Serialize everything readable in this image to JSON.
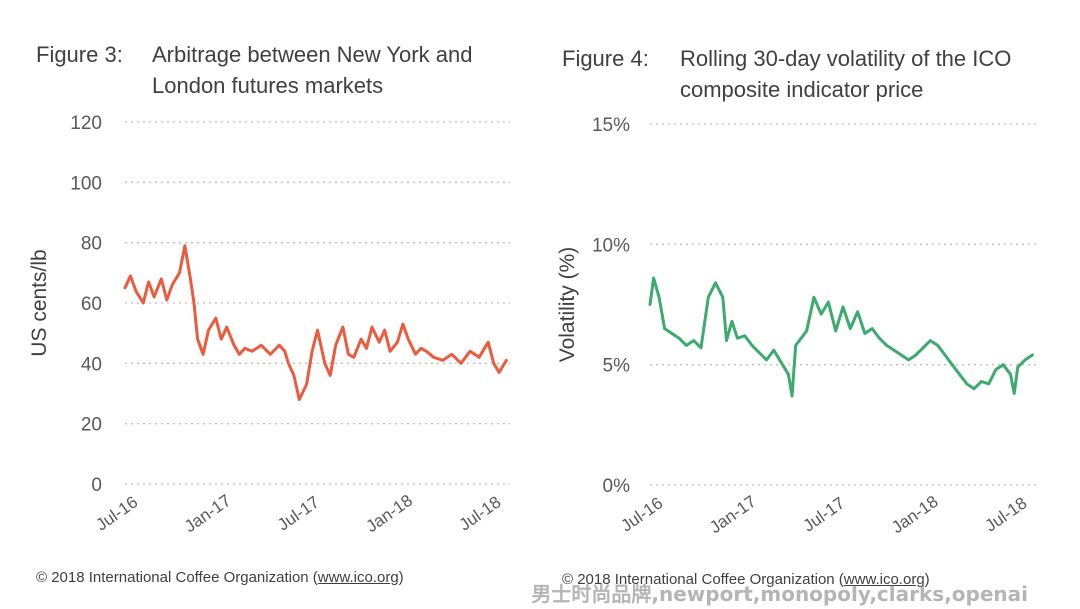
{
  "chart_data": [
    {
      "type": "line",
      "figure_number": "Figure 3:",
      "title_lines": [
        "Arbitrage between New York and",
        "London futures markets"
      ],
      "xlabel": "",
      "ylabel": "US cents/lb",
      "ylim": [
        0,
        120
      ],
      "yticks": [
        0,
        20,
        40,
        60,
        80,
        100,
        120
      ],
      "ytick_labels": [
        "0",
        "20",
        "40",
        "60",
        "80",
        "100",
        "120"
      ],
      "xlim": [
        2016.5,
        2018.62
      ],
      "xtick_labels": [
        "Jul-16",
        "Jan-17",
        "Jul-17",
        "Jan-18",
        "Jul-18"
      ],
      "xtick_values": [
        2016.5,
        2017.0,
        2017.5,
        2018.0,
        2018.5
      ],
      "grid": true,
      "color": "#ED5B3E",
      "series": [
        {
          "x": [
            2016.5,
            2016.53,
            2016.56,
            2016.6,
            2016.63,
            2016.66,
            2016.7,
            2016.73,
            2016.76,
            2016.8,
            2016.83,
            2016.86,
            2016.88,
            2016.9,
            2016.93,
            2016.96,
            2017.0,
            2017.03,
            2017.06,
            2017.1,
            2017.13,
            2017.16,
            2017.2,
            2017.25,
            2017.3,
            2017.35,
            2017.38,
            2017.4,
            2017.43,
            2017.46,
            2017.5,
            2017.53,
            2017.56,
            2017.6,
            2017.63,
            2017.66,
            2017.7,
            2017.73,
            2017.76,
            2017.8,
            2017.83,
            2017.86,
            2017.9,
            2017.93,
            2017.96,
            2018.0,
            2018.03,
            2018.06,
            2018.1,
            2018.13,
            2018.16,
            2018.2,
            2018.25,
            2018.3,
            2018.35,
            2018.4,
            2018.45,
            2018.5,
            2018.53,
            2018.56,
            2018.6
          ],
          "y": [
            65,
            69,
            64,
            60,
            67,
            62,
            68,
            61,
            66,
            70,
            79,
            68,
            60,
            48,
            43,
            51,
            55,
            48,
            52,
            46,
            43,
            45,
            44,
            46,
            43,
            46,
            44,
            40,
            36,
            28,
            33,
            44,
            51,
            40,
            36,
            46,
            52,
            43,
            42,
            48,
            45,
            52,
            47,
            51,
            44,
            47,
            53,
            48,
            43,
            45,
            44,
            42,
            41,
            43,
            40,
            44,
            42,
            47,
            40,
            37,
            41
          ]
        }
      ]
    },
    {
      "type": "line",
      "figure_number": "Figure 4:",
      "title_lines": [
        "Rolling 30-day volatility of the ICO",
        "composite indicator price"
      ],
      "xlabel": "",
      "ylabel": "Volatility (%)",
      "ylim": [
        0,
        15
      ],
      "yticks": [
        0,
        5,
        10,
        15
      ],
      "ytick_labels": [
        "0%",
        "5%",
        "10%",
        "15%"
      ],
      "xlim": [
        2016.5,
        2018.62
      ],
      "xtick_labels": [
        "Jul-16",
        "Jan-17",
        "Jul-17",
        "Jan-18",
        "Jul-18"
      ],
      "xtick_values": [
        2016.5,
        2017.0,
        2017.5,
        2018.0,
        2018.5
      ],
      "grid": true,
      "color": "#3DAA6E",
      "series": [
        {
          "x": [
            2016.5,
            2016.52,
            2016.55,
            2016.58,
            2016.62,
            2016.66,
            2016.7,
            2016.74,
            2016.78,
            2016.82,
            2016.86,
            2016.9,
            2016.92,
            2016.95,
            2016.98,
            2017.02,
            2017.06,
            2017.1,
            2017.14,
            2017.18,
            2017.22,
            2017.26,
            2017.28,
            2017.3,
            2017.32,
            2017.36,
            2017.4,
            2017.44,
            2017.48,
            2017.52,
            2017.56,
            2017.6,
            2017.64,
            2017.68,
            2017.72,
            2017.76,
            2017.8,
            2017.84,
            2017.88,
            2017.92,
            2017.96,
            2018.0,
            2018.04,
            2018.08,
            2018.12,
            2018.16,
            2018.2,
            2018.24,
            2018.28,
            2018.32,
            2018.36,
            2018.4,
            2018.44,
            2018.48,
            2018.5,
            2018.52,
            2018.56,
            2018.6
          ],
          "y": [
            7.5,
            8.6,
            7.8,
            6.5,
            6.3,
            6.1,
            5.8,
            6.0,
            5.7,
            7.8,
            8.4,
            7.8,
            6.0,
            6.8,
            6.1,
            6.2,
            5.8,
            5.5,
            5.2,
            5.6,
            5.1,
            4.6,
            3.7,
            5.8,
            6.0,
            6.4,
            7.8,
            7.1,
            7.6,
            6.4,
            7.4,
            6.5,
            7.2,
            6.3,
            6.5,
            6.1,
            5.8,
            5.6,
            5.4,
            5.2,
            5.4,
            5.7,
            6.0,
            5.8,
            5.4,
            5.0,
            4.6,
            4.2,
            4.0,
            4.3,
            4.2,
            4.8,
            5.0,
            4.6,
            3.8,
            4.9,
            5.2,
            5.4
          ]
        }
      ]
    }
  ],
  "credits": [
    {
      "prefix": "© 2018 International Coffee Organization (",
      "link": "www.ico.org",
      "suffix": ")"
    },
    {
      "prefix": "© 2018 International Coffee Organization (",
      "link": "www.ico.org",
      "suffix": ")"
    }
  ],
  "watermark": "男士时尚品牌,newport,monopoly,clarks,openai"
}
